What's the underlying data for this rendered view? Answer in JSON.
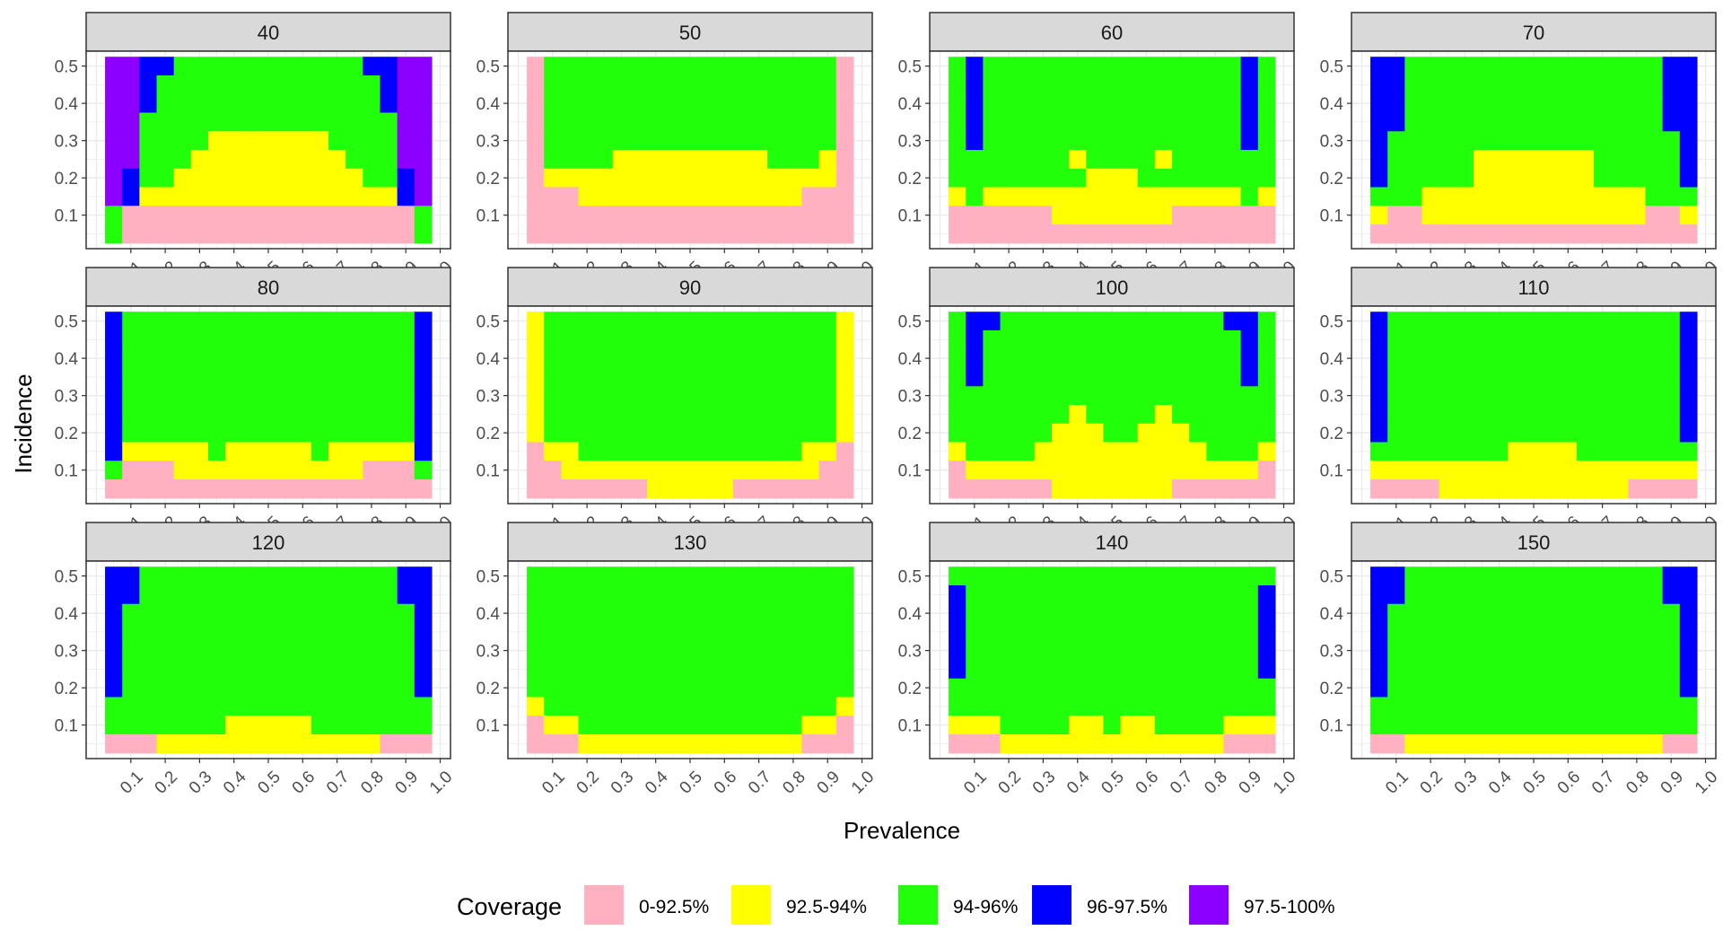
{
  "chart_data": {
    "type": "heatmap",
    "xlabel": "Prevalence",
    "ylabel": "Incidence",
    "x_ticks": [
      "0.1",
      "0.2",
      "0.3",
      "0.4",
      "0.5",
      "0.6",
      "0.7",
      "0.8",
      "0.9",
      "1.0"
    ],
    "y_ticks": [
      "0.1",
      "0.2",
      "0.3",
      "0.4",
      "0.5"
    ],
    "xlim": [
      -0.03,
      1.03
    ],
    "ylim": [
      0.01,
      0.54
    ],
    "x_cell_width": 0.05,
    "y_cell_height": 0.05,
    "grid": true,
    "legend": {
      "title": "Coverage",
      "position": "bottom",
      "categories": [
        {
          "code": "P",
          "label": "0-92.5%",
          "color": "#FFB0C1"
        },
        {
          "code": "Y",
          "label": "92.5-94%",
          "color": "#FFFF00"
        },
        {
          "code": "G",
          "label": "94-96%",
          "color": "#22FF0A"
        },
        {
          "code": "B",
          "label": "96-97.5%",
          "color": "#0000FF"
        },
        {
          "code": "V",
          "label": "97.5-100%",
          "color": "#8B00FF"
        }
      ]
    },
    "x_centers": [
      0.05,
      0.1,
      0.15,
      0.2,
      0.25,
      0.3,
      0.35,
      0.4,
      0.45,
      0.5,
      0.55,
      0.6,
      0.65,
      0.7,
      0.75,
      0.8,
      0.85,
      0.9,
      0.95
    ],
    "y_centers": [
      0.5,
      0.45,
      0.4,
      0.35,
      0.3,
      0.25,
      0.2,
      0.15,
      0.1,
      0.05
    ],
    "panels": [
      {
        "label": "40",
        "rows": [
          "VVBBGGGGGGGGGGGBBVV",
          "VVBGGGGGGGGGGGGGBVV",
          "VVBGGGGGGGGGGGGGBVV",
          "VVGGGGGGGGGGGGGGGVV",
          "VVGGGGYYYYYYYGGGGVV",
          "VVGGGYYYYYYYYYGGGVV",
          "VBGGYYYYYYYYYYYGGBV",
          "VBYYYYYYYYYYYYYYYBV",
          "GPPPPPPPPPPPPPPPPPG",
          "GPPPPPPPPPPPPPPPPPG"
        ]
      },
      {
        "label": "50",
        "rows": [
          "PGGGGGGGGGGGGGGGGGP",
          "PGGGGGGGGGGGGGGGGGP",
          "PGGGGGGGGGGGGGGGGGP",
          "PGGGGGGGGGGGGGGGGGP",
          "PGGGGGGGGGGGGGGGGGP",
          "PGGGGYYYYYYYYYGGGYP",
          "PYYYYYYYYYYYYYYYYYP",
          "PPPYYYYYYYYYYYYYPPP",
          "PPPPPPPPPPPPPPPPPPP",
          "PPPPPPPPPPPPPPPPPPP"
        ]
      },
      {
        "label": "60",
        "rows": [
          "GBGGGGGGGGGGGGGGGBG",
          "GBGGGGGGGGGGGGGGGBG",
          "GBGGGGGGGGGGGGGGGBG",
          "GBGGGGGGGGGGGGGGGBG",
          "GBGGGGGGGGGGGGGGGBG",
          "GGGGGGGYGGGGYGGGGGG",
          "GGGGGGGGYYYGGGGGGGG",
          "YGYYYYYYYYYYYYYYYGY",
          "PPPPPPYYYYYYYPPPPPP",
          "PPPPPPPPPPPPPPPPPPP"
        ]
      },
      {
        "label": "70",
        "rows": [
          "BBGGGGGGGGGGGGGGGBB",
          "BBGGGGGGGGGGGGGGGBB",
          "BBGGGGGGGGGGGGGGGBB",
          "BBGGGGGGGGGGGGGGGBB",
          "BGGGGGGGGGGGGGGGGGB",
          "BGGGGGYYYYYYYGGGGGB",
          "BGGGGGYYYYYYYGGGGGB",
          "GGGYYYYYYYYYYYYYGGG",
          "YPPYYYYYYYYYYYYYPPY",
          "PPPPPPPPPPPPPPPPPPP"
        ]
      },
      {
        "label": "80",
        "rows": [
          "BGGGGGGGGGGGGGGGGGB",
          "BGGGGGGGGGGGGGGGGGB",
          "BGGGGGGGGGGGGGGGGGB",
          "BGGGGGGGGGGGGGGGGGB",
          "BGGGGGGGGGGGGGGGGGB",
          "BGGGGGGGGGGGGGGGGGB",
          "BGGGGGGGGGGGGGGGGGB",
          "BYYYYYGYYYYYGYYYYYB",
          "GPPPYYYYYYYYYYYPPPG",
          "PPPPPPPPPPPPPPPPPPP"
        ]
      },
      {
        "label": "90",
        "rows": [
          "YGGGGGGGGGGGGGGGGGY",
          "YGGGGGGGGGGGGGGGGGY",
          "YGGGGGGGGGGGGGGGGGY",
          "YGGGGGGGGGGGGGGGGGY",
          "YGGGGGGGGGGGGGGGGGY",
          "YGGGGGGGGGGGGGGGGGY",
          "YGGGGGGGGGGGGGGGGGY",
          "PYYGGGGGGGGGGGGGYYP",
          "PPYYYYYYYYYYYYYYYPP",
          "PPPPPPPYYYYYPPPPPPP"
        ]
      },
      {
        "label": "100",
        "rows": [
          "GBBGGGGGGGGGGGGGBBG",
          "GBGGGGGGGGGGGGGGGBG",
          "GBGGGGGGGGGGGGGGGBG",
          "GBGGGGGGGGGGGGGGGBG",
          "GGGGGGGGGGGGGGGGGGG",
          "GGGGGGGYGGGGYGGGGGG",
          "GGGGGGYYYGGYYYGGGGG",
          "YGGGGYYYYYYYYYYGGGY",
          "PYYYYYYYYYYYYYYYYYP",
          "PPPPPPYYYYYYYPPPPPP"
        ]
      },
      {
        "label": "110",
        "rows": [
          "BGGGGGGGGGGGGGGGGGB",
          "BGGGGGGGGGGGGGGGGGB",
          "BGGGGGGGGGGGGGGGGGB",
          "BGGGGGGGGGGGGGGGGGB",
          "BGGGGGGGGGGGGGGGGGB",
          "BGGGGGGGGGGGGGGGGGB",
          "BGGGGGGGGGGGGGGGGGB",
          "GGGGGGGGYYYYGGGGGGG",
          "YYYYYYYYYYYYYYYYYYY",
          "PPPPYYYYYYYYYYYPPPP"
        ]
      },
      {
        "label": "120",
        "rows": [
          "BBGGGGGGGGGGGGGGGBB",
          "BBGGGGGGGGGGGGGGGBB",
          "BGGGGGGGGGGGGGGGGGB",
          "BGGGGGGGGGGGGGGGGGB",
          "BGGGGGGGGGGGGGGGGGB",
          "BGGGGGGGGGGGGGGGGGB",
          "BGGGGGGGGGGGGGGGGGB",
          "GGGGGGGGGGGGGGGGGGG",
          "GGGGGGGYYYYYGGGGGGG",
          "PPPYYYYYYYYYYYYYPPP"
        ]
      },
      {
        "label": "130",
        "rows": [
          "GGGGGGGGGGGGGGGGGGG",
          "GGGGGGGGGGGGGGGGGGG",
          "GGGGGGGGGGGGGGGGGGG",
          "GGGGGGGGGGGGGGGGGGG",
          "GGGGGGGGGGGGGGGGGGG",
          "GGGGGGGGGGGGGGGGGGG",
          "GGGGGGGGGGGGGGGGGGG",
          "YGGGGGGGGGGGGGGGGGY",
          "PYYGGGGGGGGGGGGGYYP",
          "PPPYYYYYYYYYYYYYPPP"
        ]
      },
      {
        "label": "140",
        "rows": [
          "GGGGGGGGGGGGGGGGGGG",
          "BGGGGGGGGGGGGGGGGGB",
          "BGGGGGGGGGGGGGGGGGB",
          "BGGGGGGGGGGGGGGGGGB",
          "BGGGGGGGGGGGGGGGGGB",
          "BGGGGGGGGGGGGGGGGGB",
          "GGGGGGGGGGGGGGGGGGG",
          "GGGGGGGGGGGGGGGGGGG",
          "YYYGGGGYYGYYGGGGYYY",
          "PPPYYYYYYYYYYYYYPPP"
        ]
      },
      {
        "label": "150",
        "rows": [
          "BBGGGGGGGGGGGGGGGBB",
          "BBGGGGGGGGGGGGGGGBB",
          "BGGGGGGGGGGGGGGGGGB",
          "BGGGGGGGGGGGGGGGGGB",
          "BGGGGGGGGGGGGGGGGGB",
          "BGGGGGGGGGGGGGGGGGB",
          "BGGGGGGGGGGGGGGGGGB",
          "GGGGGGGGGGGGGGGGGGG",
          "GGGGGGGGGGGGGGGGGGG",
          "PPYYYYYYYYYYYYYYYPP"
        ]
      }
    ]
  }
}
